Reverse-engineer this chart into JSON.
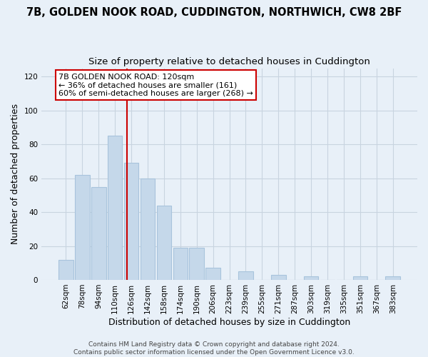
{
  "title": "7B, GOLDEN NOOK ROAD, CUDDINGTON, NORTHWICH, CW8 2BF",
  "subtitle": "Size of property relative to detached houses in Cuddington",
  "xlabel": "Distribution of detached houses by size in Cuddington",
  "ylabel": "Number of detached properties",
  "bar_labels": [
    "62sqm",
    "78sqm",
    "94sqm",
    "110sqm",
    "126sqm",
    "142sqm",
    "158sqm",
    "174sqm",
    "190sqm",
    "206sqm",
    "223sqm",
    "239sqm",
    "255sqm",
    "271sqm",
    "287sqm",
    "303sqm",
    "319sqm",
    "335sqm",
    "351sqm",
    "367sqm",
    "383sqm"
  ],
  "bar_values": [
    12,
    62,
    55,
    85,
    69,
    60,
    44,
    19,
    19,
    7,
    0,
    5,
    0,
    3,
    0,
    2,
    0,
    0,
    2,
    0,
    2
  ],
  "bar_color": "#c5d8ea",
  "bar_edge_color": "#a8c4dc",
  "vline_color": "#cc0000",
  "vline_x_index": 3.75,
  "annotation_text": "7B GOLDEN NOOK ROAD: 120sqm\n← 36% of detached houses are smaller (161)\n60% of semi-detached houses are larger (268) →",
  "annotation_box_color": "#ffffff",
  "annotation_box_edge": "#cc0000",
  "ylim": [
    0,
    125
  ],
  "yticks": [
    0,
    20,
    40,
    60,
    80,
    100,
    120
  ],
  "footer_line1": "Contains HM Land Registry data © Crown copyright and database right 2024.",
  "footer_line2": "Contains public sector information licensed under the Open Government Licence v3.0.",
  "bg_color": "#e8f0f8",
  "grid_color": "#c8d4e0",
  "title_fontsize": 10.5,
  "subtitle_fontsize": 9.5,
  "label_fontsize": 9,
  "tick_fontsize": 7.5,
  "footer_fontsize": 6.5
}
